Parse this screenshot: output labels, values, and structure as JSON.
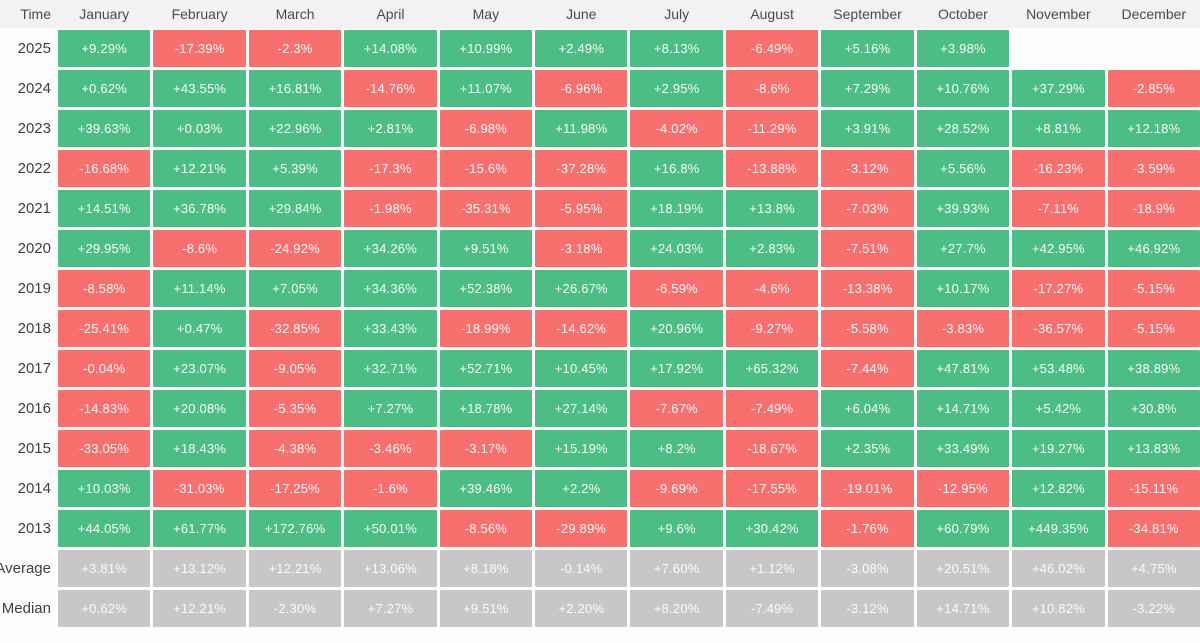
{
  "colors": {
    "positive": "#4dbd86",
    "negative": "#f7706e",
    "neutral": "#c7c7c7",
    "header_bg": "#f2f2f2",
    "page_bg": "#fdfdfd",
    "header_text": "#4a4a4a",
    "label_text": "#3f3f3f",
    "cell_text": "#ffffff"
  },
  "header": {
    "time_label": "Time"
  },
  "chart_data": {
    "type": "heatmap",
    "title": "",
    "xlabel": "",
    "ylabel": "Time",
    "legend": "none",
    "color_rule": "green if value >= 0, red if value < 0; Average and Median rows are gray regardless of sign; empty cells have no block",
    "columns": [
      "January",
      "February",
      "March",
      "April",
      "May",
      "June",
      "July",
      "August",
      "September",
      "October",
      "November",
      "December"
    ],
    "rows": [
      {
        "label": "2025",
        "kind": "year",
        "values": [
          9.29,
          -17.39,
          -2.3,
          14.08,
          10.99,
          2.49,
          8.13,
          -6.49,
          5.16,
          3.98,
          null,
          null
        ],
        "display": [
          "+9.29%",
          "-17.39%",
          "-2.3%",
          "+14.08%",
          "+10.99%",
          "+2.49%",
          "+8.13%",
          "-6.49%",
          "+5.16%",
          "+3.98%",
          null,
          null
        ]
      },
      {
        "label": "2024",
        "kind": "year",
        "values": [
          0.62,
          43.55,
          16.81,
          -14.76,
          11.07,
          -6.96,
          2.95,
          -8.6,
          7.29,
          10.76,
          37.29,
          -2.85
        ],
        "display": [
          "+0.62%",
          "+43.55%",
          "+16.81%",
          "-14.76%",
          "+11.07%",
          "-6.96%",
          "+2.95%",
          "-8.6%",
          "+7.29%",
          "+10.76%",
          "+37.29%",
          "-2.85%"
        ]
      },
      {
        "label": "2023",
        "kind": "year",
        "values": [
          39.63,
          0.03,
          22.96,
          2.81,
          -6.98,
          11.98,
          -4.02,
          -11.29,
          3.91,
          28.52,
          8.81,
          12.18
        ],
        "display": [
          "+39.63%",
          "+0.03%",
          "+22.96%",
          "+2.81%",
          "-6.98%",
          "+11.98%",
          "-4.02%",
          "-11.29%",
          "+3.91%",
          "+28.52%",
          "+8.81%",
          "+12.18%"
        ]
      },
      {
        "label": "2022",
        "kind": "year",
        "values": [
          -16.68,
          12.21,
          5.39,
          -17.3,
          -15.6,
          -37.28,
          16.8,
          -13.88,
          -3.12,
          5.56,
          -16.23,
          -3.59
        ],
        "display": [
          "-16.68%",
          "+12.21%",
          "+5.39%",
          "-17.3%",
          "-15.6%",
          "-37.28%",
          "+16.8%",
          "-13.88%",
          "-3.12%",
          "+5.56%",
          "-16.23%",
          "-3.59%"
        ]
      },
      {
        "label": "2021",
        "kind": "year",
        "values": [
          14.51,
          36.78,
          29.84,
          -1.98,
          -35.31,
          -5.95,
          18.19,
          13.8,
          -7.03,
          39.93,
          -7.11,
          -18.9
        ],
        "display": [
          "+14.51%",
          "+36.78%",
          "+29.84%",
          "-1.98%",
          "-35.31%",
          "-5.95%",
          "+18.19%",
          "+13.8%",
          "-7.03%",
          "+39.93%",
          "-7.11%",
          "-18.9%"
        ]
      },
      {
        "label": "2020",
        "kind": "year",
        "values": [
          29.95,
          -8.6,
          -24.92,
          34.26,
          9.51,
          -3.18,
          24.03,
          2.83,
          -7.51,
          27.7,
          42.95,
          46.92
        ],
        "display": [
          "+29.95%",
          "-8.6%",
          "-24.92%",
          "+34.26%",
          "+9.51%",
          "-3.18%",
          "+24.03%",
          "+2.83%",
          "-7.51%",
          "+27.7%",
          "+42.95%",
          "+46.92%"
        ]
      },
      {
        "label": "2019",
        "kind": "year",
        "values": [
          -8.58,
          11.14,
          7.05,
          34.36,
          52.38,
          26.67,
          -6.59,
          -4.6,
          -13.38,
          10.17,
          -17.27,
          -5.15
        ],
        "display": [
          "-8.58%",
          "+11.14%",
          "+7.05%",
          "+34.36%",
          "+52.38%",
          "+26.67%",
          "-6.59%",
          "-4.6%",
          "-13.38%",
          "+10.17%",
          "-17.27%",
          "-5.15%"
        ]
      },
      {
        "label": "2018",
        "kind": "year",
        "values": [
          -25.41,
          0.47,
          -32.85,
          33.43,
          -18.99,
          -14.62,
          20.96,
          -9.27,
          -5.58,
          -3.83,
          -36.57,
          -5.15
        ],
        "display": [
          "-25.41%",
          "+0.47%",
          "-32.85%",
          "+33.43%",
          "-18.99%",
          "-14.62%",
          "+20.96%",
          "-9.27%",
          "-5.58%",
          "-3.83%",
          "-36.57%",
          "-5.15%"
        ]
      },
      {
        "label": "2017",
        "kind": "year",
        "values": [
          -0.04,
          23.07,
          -9.05,
          32.71,
          52.71,
          10.45,
          17.92,
          65.32,
          -7.44,
          47.81,
          53.48,
          38.89
        ],
        "display": [
          "-0.04%",
          "+23.07%",
          "-9.05%",
          "+32.71%",
          "+52.71%",
          "+10.45%",
          "+17.92%",
          "+65.32%",
          "-7.44%",
          "+47.81%",
          "+53.48%",
          "+38.89%"
        ]
      },
      {
        "label": "2016",
        "kind": "year",
        "values": [
          -14.83,
          20.08,
          -5.35,
          7.27,
          18.78,
          27.14,
          -7.67,
          -7.49,
          6.04,
          14.71,
          5.42,
          30.8
        ],
        "display": [
          "-14.83%",
          "+20.08%",
          "-5.35%",
          "+7.27%",
          "+18.78%",
          "+27.14%",
          "-7.67%",
          "-7.49%",
          "+6.04%",
          "+14.71%",
          "+5.42%",
          "+30.8%"
        ]
      },
      {
        "label": "2015",
        "kind": "year",
        "values": [
          -33.05,
          18.43,
          -4.38,
          -3.46,
          -3.17,
          15.19,
          8.2,
          -18.67,
          2.35,
          33.49,
          19.27,
          13.83
        ],
        "display": [
          "-33.05%",
          "+18.43%",
          "-4.38%",
          "-3.46%",
          "-3.17%",
          "+15.19%",
          "+8.2%",
          "-18.67%",
          "+2.35%",
          "+33.49%",
          "+19.27%",
          "+13.83%"
        ]
      },
      {
        "label": "2014",
        "kind": "year",
        "values": [
          10.03,
          -31.03,
          -17.25,
          -1.6,
          39.46,
          2.2,
          -9.69,
          -17.55,
          -19.01,
          -12.95,
          12.82,
          -15.11
        ],
        "display": [
          "+10.03%",
          "-31.03%",
          "-17.25%",
          "-1.6%",
          "+39.46%",
          "+2.2%",
          "-9.69%",
          "-17.55%",
          "-19.01%",
          "-12.95%",
          "+12.82%",
          "-15.11%"
        ]
      },
      {
        "label": "2013",
        "kind": "year",
        "values": [
          44.05,
          61.77,
          172.76,
          50.01,
          -8.56,
          -29.89,
          9.6,
          30.42,
          -1.76,
          60.79,
          449.35,
          -34.81
        ],
        "display": [
          "+44.05%",
          "+61.77%",
          "+172.76%",
          "+50.01%",
          "-8.56%",
          "-29.89%",
          "+9.6%",
          "+30.42%",
          "-1.76%",
          "+60.79%",
          "+449.35%",
          "-34.81%"
        ]
      },
      {
        "label": "Average",
        "kind": "aggregate",
        "values": [
          3.81,
          13.12,
          12.21,
          13.06,
          8.18,
          -0.14,
          7.6,
          1.12,
          -3.08,
          20.51,
          46.02,
          4.75
        ],
        "display": [
          "+3.81%",
          "+13.12%",
          "+12.21%",
          "+13.06%",
          "+8.18%",
          "-0.14%",
          "+7.60%",
          "+1.12%",
          "-3.08%",
          "+20.51%",
          "+46.02%",
          "+4.75%"
        ]
      },
      {
        "label": "Median",
        "kind": "aggregate",
        "values": [
          0.62,
          12.21,
          -2.3,
          7.27,
          9.51,
          2.2,
          8.2,
          -7.49,
          -3.12,
          14.71,
          10.82,
          -3.22
        ],
        "display": [
          "+0.62%",
          "+12.21%",
          "-2.30%",
          "+7.27%",
          "+9.51%",
          "+2.20%",
          "+8.20%",
          "-7.49%",
          "-3.12%",
          "+14.71%",
          "+10.82%",
          "-3.22%"
        ]
      }
    ]
  }
}
